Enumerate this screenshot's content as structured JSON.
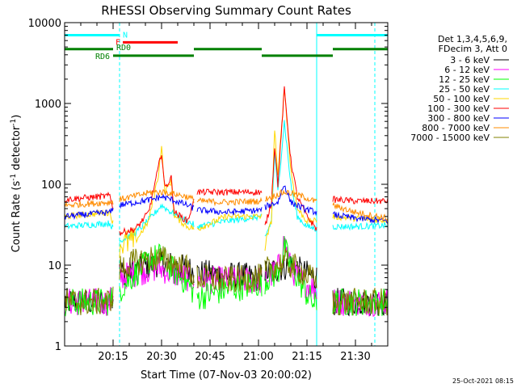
{
  "chart_data": {
    "type": "line",
    "title": "RHESSI Observing Summary Count Rates",
    "xlabel": "Start Time (07-Nov-03 20:00:02)",
    "ylabel_main": "Count Rate (s",
    "ylabel_sup1": "-1",
    "ylabel_mid": " detector",
    "ylabel_sup2": "-1",
    "ylabel_end": ")",
    "y_scale": "log",
    "ylim": [
      1,
      10000
    ],
    "xlim_minutes": [
      0,
      100
    ],
    "x_ticks": [
      {
        "minute": 15,
        "label": "20:15"
      },
      {
        "minute": 30,
        "label": "20:30"
      },
      {
        "minute": 45,
        "label": "20:45"
      },
      {
        "minute": 60,
        "label": "21:00"
      },
      {
        "minute": 75,
        "label": "21:15"
      },
      {
        "minute": 90,
        "label": "21:30"
      }
    ],
    "y_ticks": [
      {
        "value": 1,
        "label": "1"
      },
      {
        "value": 10,
        "label": "10"
      },
      {
        "value": 100,
        "label": "100"
      },
      {
        "value": 1000,
        "label": "1000"
      },
      {
        "value": 10000,
        "label": "10000"
      }
    ],
    "legend_placement": "right",
    "legend_header": [
      "Det 1,3,4,5,6,9,",
      "FDecim 3, Att 0"
    ],
    "timestamp": "25-Oct-2021 08:15",
    "flags": [
      {
        "label": "N",
        "color": "#00ffff",
        "y_value": 7000,
        "segments": [
          [
            0,
            17
          ],
          [
            78,
            100
          ]
        ]
      },
      {
        "label": "F",
        "color": "#ff0000",
        "y_value": 5700,
        "segments": [
          [
            18,
            35
          ]
        ]
      },
      {
        "label": "RD0",
        "color": "#008000",
        "y_value": 4700,
        "segments": [
          [
            0,
            15
          ],
          [
            40,
            61
          ],
          [
            83,
            100
          ]
        ]
      },
      {
        "label": "RD6",
        "color": "#008000",
        "y_value": 3900,
        "segments": [
          [
            15,
            40
          ],
          [
            61,
            83
          ]
        ]
      }
    ],
    "night_boundaries": [
      {
        "minute": 0,
        "color": "#00ffff",
        "dashed": false
      },
      {
        "minute": 17,
        "color": "#00ffff",
        "dashed": true
      },
      {
        "minute": 78,
        "color": "#00ffff",
        "dashed": false
      },
      {
        "minute": 96,
        "color": "#00ffff",
        "dashed": true
      }
    ],
    "gaps": [
      [
        15,
        17
      ],
      [
        40,
        41
      ],
      [
        61,
        62
      ],
      [
        78,
        83
      ]
    ],
    "series": [
      {
        "name": "3 - 6 keV",
        "color": "#000000",
        "points": [
          [
            0,
            3.5
          ],
          [
            14,
            3.5
          ],
          [
            17,
            8
          ],
          [
            22,
            9
          ],
          [
            27,
            10
          ],
          [
            30,
            11
          ],
          [
            33,
            10
          ],
          [
            38,
            9
          ],
          [
            41,
            8
          ],
          [
            50,
            7.5
          ],
          [
            61,
            7
          ],
          [
            62,
            8
          ],
          [
            66,
            9
          ],
          [
            70,
            10
          ],
          [
            74,
            8
          ],
          [
            78,
            7
          ],
          [
            83,
            3.5
          ],
          [
            100,
            3.5
          ]
        ]
      },
      {
        "name": "6 - 12 keV",
        "color": "#ff00ff",
        "points": [
          [
            0,
            3.5
          ],
          [
            14,
            3.5
          ],
          [
            17,
            7
          ],
          [
            22,
            8
          ],
          [
            27,
            9
          ],
          [
            30,
            9
          ],
          [
            33,
            8
          ],
          [
            38,
            7
          ],
          [
            41,
            6.5
          ],
          [
            50,
            6.5
          ],
          [
            61,
            6.5
          ],
          [
            63,
            7
          ],
          [
            66,
            9
          ],
          [
            68,
            20
          ],
          [
            70,
            9
          ],
          [
            74,
            6
          ],
          [
            78,
            5
          ],
          [
            83,
            3.5
          ],
          [
            100,
            3.5
          ]
        ]
      },
      {
        "name": "12 - 25 keV",
        "color": "#00ff00",
        "points": [
          [
            0,
            3.5
          ],
          [
            14,
            3.5
          ],
          [
            17,
            5
          ],
          [
            22,
            8
          ],
          [
            27,
            12
          ],
          [
            30,
            13
          ],
          [
            33,
            9
          ],
          [
            38,
            6
          ],
          [
            41,
            4
          ],
          [
            50,
            5
          ],
          [
            61,
            6
          ],
          [
            63,
            7
          ],
          [
            66,
            8
          ],
          [
            68,
            16
          ],
          [
            70,
            10
          ],
          [
            74,
            5
          ],
          [
            78,
            3
          ],
          [
            83,
            3.5
          ],
          [
            100,
            3.5
          ]
        ]
      },
      {
        "name": "25 - 50 keV",
        "color": "#00ffff",
        "points": [
          [
            0,
            30
          ],
          [
            14,
            33
          ],
          [
            17,
            20
          ],
          [
            22,
            25
          ],
          [
            27,
            40
          ],
          [
            30,
            55
          ],
          [
            33,
            45
          ],
          [
            38,
            35
          ],
          [
            41,
            30
          ],
          [
            50,
            35
          ],
          [
            61,
            40
          ],
          [
            62,
            22
          ],
          [
            64,
            35
          ],
          [
            65,
            250
          ],
          [
            66,
            80
          ],
          [
            68,
            600
          ],
          [
            70,
            100
          ],
          [
            72,
            40
          ],
          [
            75,
            30
          ],
          [
            78,
            28
          ],
          [
            83,
            30
          ],
          [
            90,
            30
          ],
          [
            100,
            31
          ]
        ]
      },
      {
        "name": "50 - 100 keV",
        "color": "#ffd700",
        "points": [
          [
            0,
            40
          ],
          [
            14,
            45
          ],
          [
            17,
            18
          ],
          [
            22,
            20
          ],
          [
            26,
            35
          ],
          [
            29,
            130
          ],
          [
            30,
            300
          ],
          [
            31,
            80
          ],
          [
            33,
            110
          ],
          [
            34,
            40
          ],
          [
            38,
            30
          ],
          [
            41,
            28
          ],
          [
            50,
            40
          ],
          [
            61,
            40
          ],
          [
            62,
            18
          ],
          [
            64,
            35
          ],
          [
            65,
            500
          ],
          [
            66,
            120
          ],
          [
            68,
            1600
          ],
          [
            70,
            150
          ],
          [
            72,
            50
          ],
          [
            75,
            35
          ],
          [
            78,
            35
          ],
          [
            83,
            40
          ],
          [
            90,
            38
          ],
          [
            100,
            36
          ]
        ]
      },
      {
        "name": "100 - 300 keV",
        "color": "#ff0000",
        "points": [
          [
            0,
            65
          ],
          [
            14,
            72
          ],
          [
            17,
            25
          ],
          [
            22,
            28
          ],
          [
            26,
            45
          ],
          [
            29,
            160
          ],
          [
            30,
            250
          ],
          [
            31,
            90
          ],
          [
            33,
            120
          ],
          [
            34,
            45
          ],
          [
            38,
            35
          ],
          [
            41,
            80
          ],
          [
            50,
            80
          ],
          [
            61,
            80
          ],
          [
            62,
            30
          ],
          [
            64,
            60
          ],
          [
            65,
            300
          ],
          [
            66,
            100
          ],
          [
            68,
            1500
          ],
          [
            70,
            200
          ],
          [
            72,
            70
          ],
          [
            75,
            40
          ],
          [
            78,
            28
          ],
          [
            83,
            65
          ],
          [
            90,
            62
          ],
          [
            100,
            62
          ]
        ]
      },
      {
        "name": "300 - 800 keV",
        "color": "#0000ff",
        "points": [
          [
            0,
            40
          ],
          [
            14,
            45
          ],
          [
            17,
            55
          ],
          [
            22,
            60
          ],
          [
            27,
            65
          ],
          [
            30,
            70
          ],
          [
            33,
            65
          ],
          [
            38,
            55
          ],
          [
            41,
            48
          ],
          [
            50,
            45
          ],
          [
            61,
            48
          ],
          [
            63,
            55
          ],
          [
            66,
            60
          ],
          [
            68,
            100
          ],
          [
            70,
            60
          ],
          [
            74,
            50
          ],
          [
            78,
            45
          ],
          [
            83,
            42
          ],
          [
            90,
            38
          ],
          [
            100,
            35
          ]
        ]
      },
      {
        "name": "800 - 7000 keV",
        "color": "#ff8c00",
        "points": [
          [
            0,
            55
          ],
          [
            14,
            60
          ],
          [
            17,
            65
          ],
          [
            22,
            72
          ],
          [
            27,
            80
          ],
          [
            30,
            80
          ],
          [
            33,
            78
          ],
          [
            38,
            70
          ],
          [
            41,
            62
          ],
          [
            50,
            60
          ],
          [
            61,
            62
          ],
          [
            63,
            68
          ],
          [
            66,
            75
          ],
          [
            68,
            80
          ],
          [
            70,
            78
          ],
          [
            74,
            70
          ],
          [
            78,
            60
          ],
          [
            83,
            55
          ],
          [
            90,
            45
          ],
          [
            100,
            38
          ]
        ]
      },
      {
        "name": "7000 - 15000 keV",
        "color": "#808000",
        "points": [
          [
            0,
            3.5
          ],
          [
            14,
            3.5
          ],
          [
            17,
            9
          ],
          [
            22,
            11
          ],
          [
            27,
            12
          ],
          [
            30,
            12
          ],
          [
            33,
            11
          ],
          [
            38,
            9
          ],
          [
            41,
            7
          ],
          [
            50,
            6.5
          ],
          [
            61,
            7
          ],
          [
            63,
            9
          ],
          [
            66,
            10
          ],
          [
            68,
            11
          ],
          [
            70,
            10
          ],
          [
            74,
            8
          ],
          [
            78,
            6
          ],
          [
            83,
            3.5
          ],
          [
            100,
            3.5
          ]
        ]
      }
    ]
  }
}
